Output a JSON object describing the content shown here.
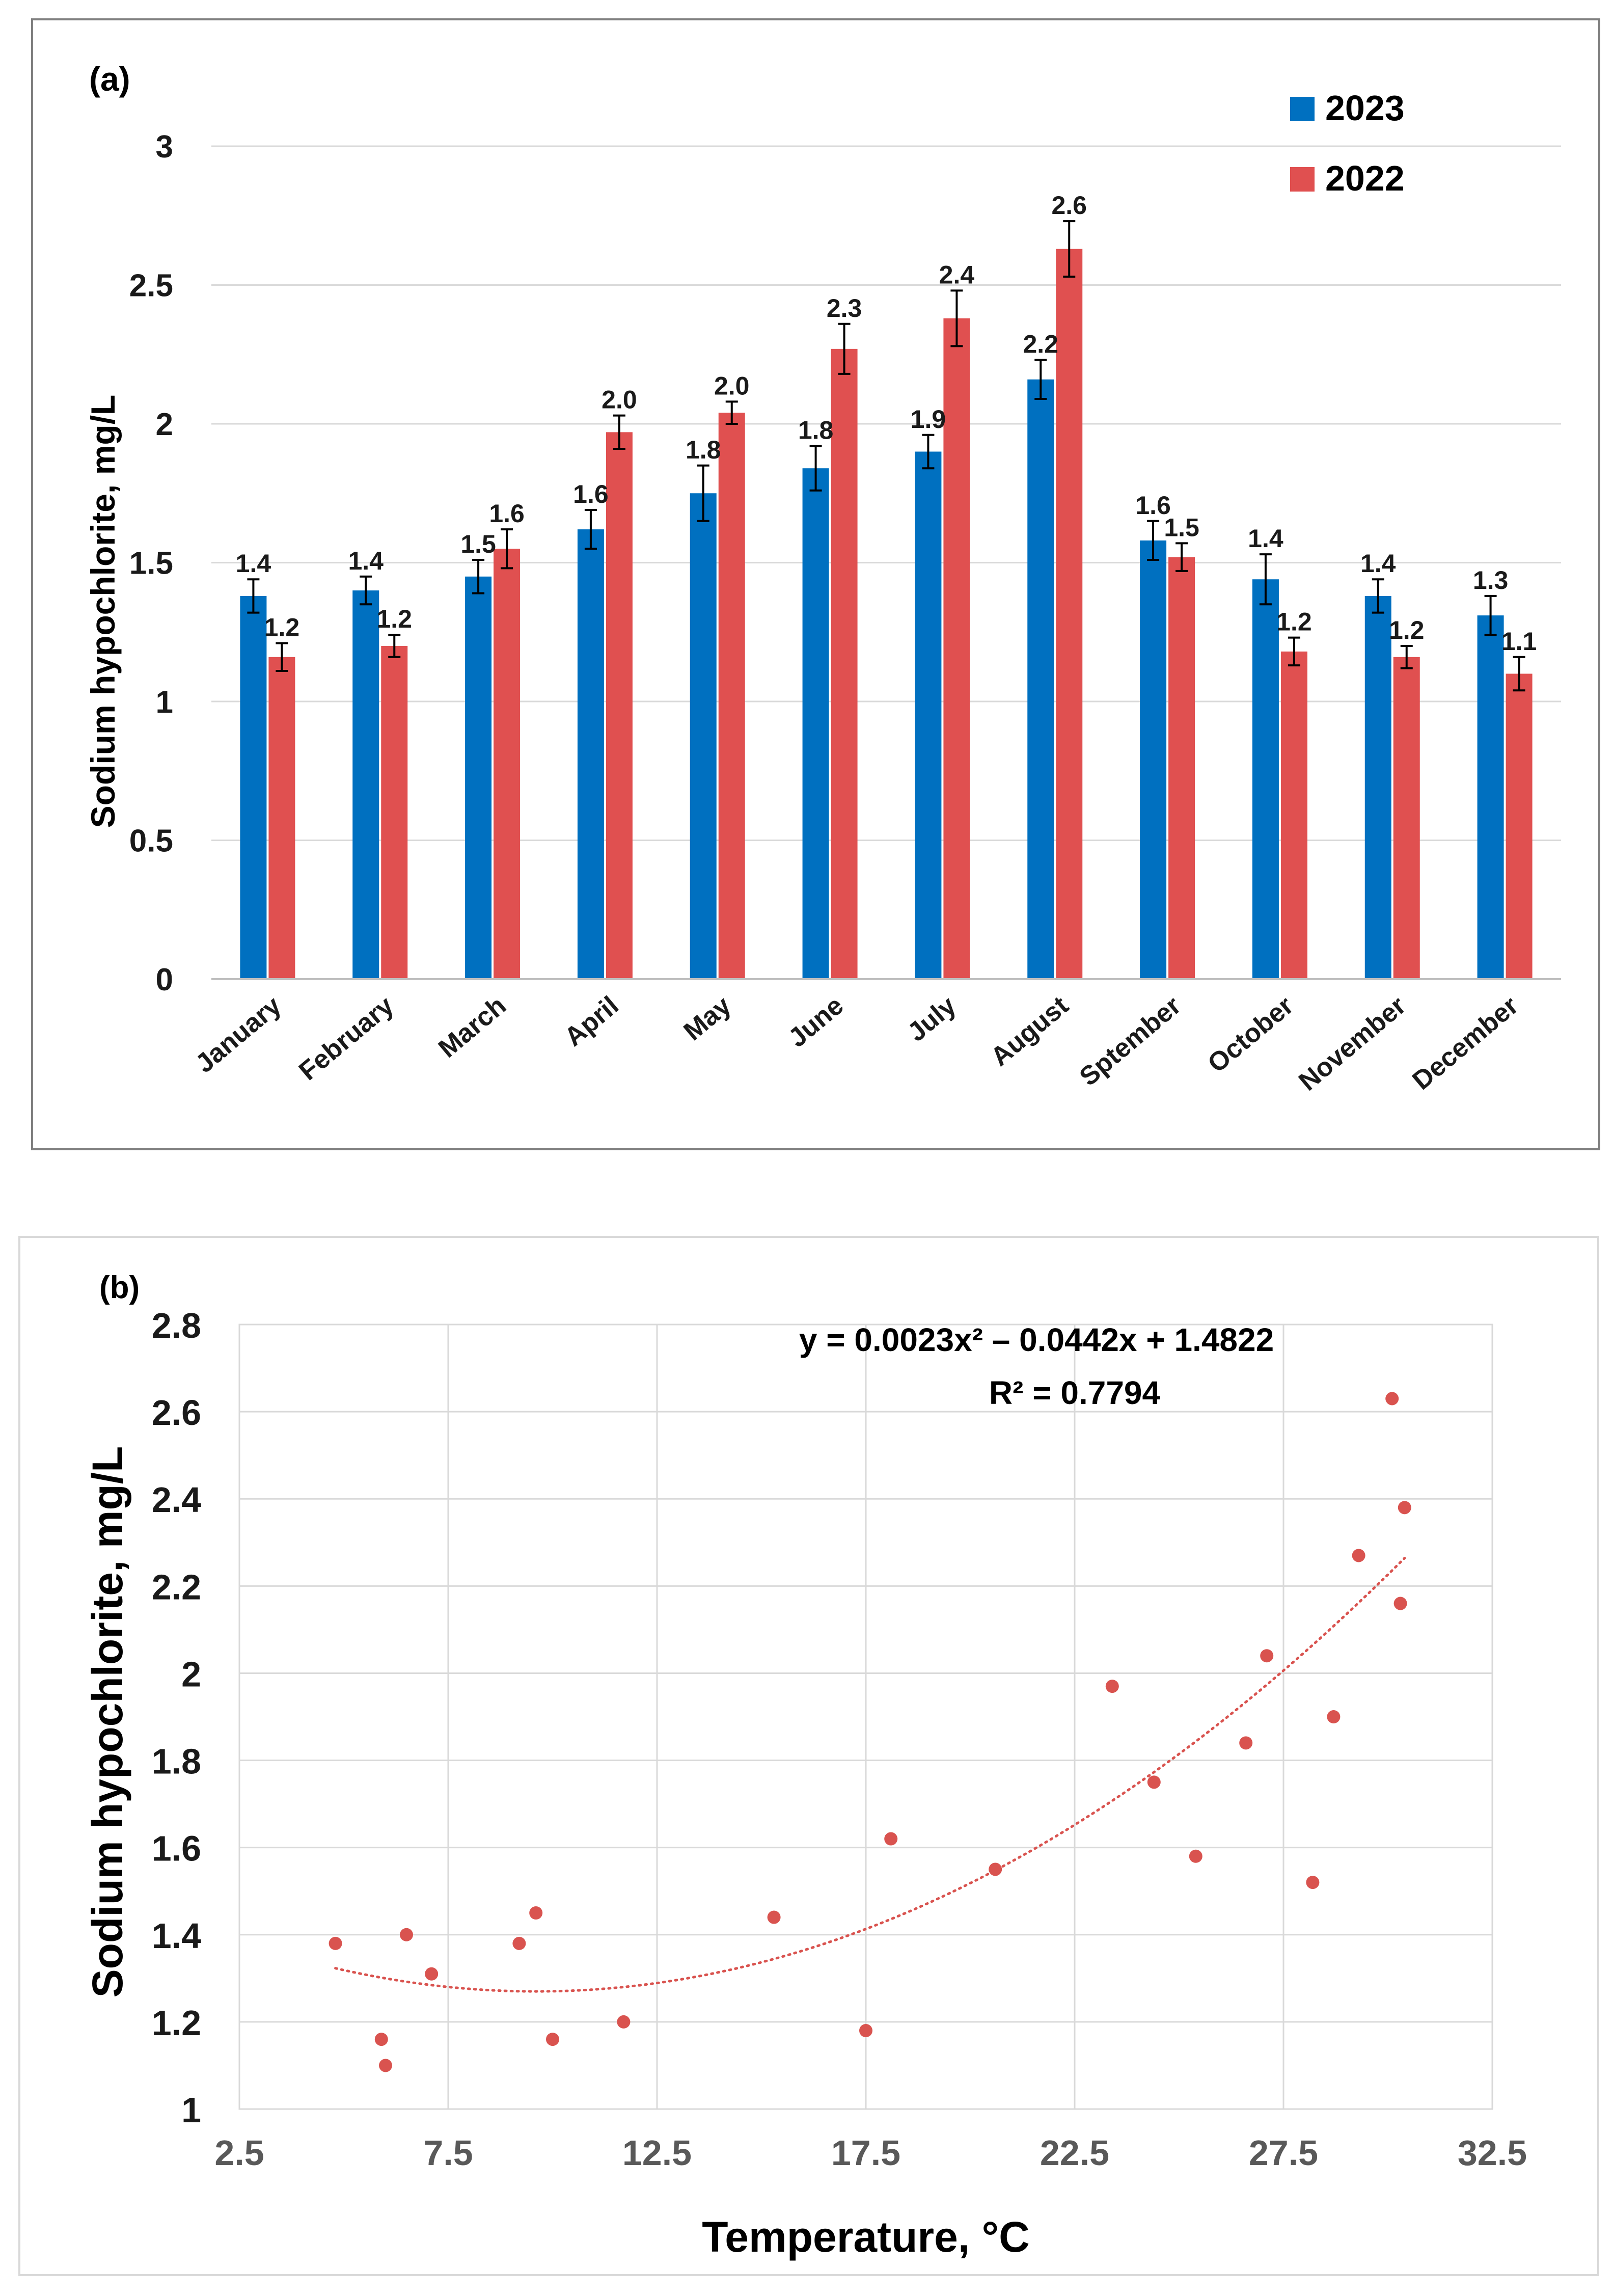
{
  "chart_data": [
    {
      "type": "bar",
      "panel_label": "(a)",
      "ylabel": "Sodium hypochlorite, mg/L",
      "ylim": [
        0,
        3
      ],
      "yticks": [
        0,
        0.5,
        1,
        1.5,
        2,
        2.5,
        3
      ],
      "ytick_labels": [
        "0",
        "0.5",
        "1",
        "1.5",
        "2",
        "2.5",
        "3"
      ],
      "grid": true,
      "legend_position": "top-right",
      "categories": [
        "January",
        "February",
        "March",
        "April",
        "May",
        "June",
        "July",
        "August",
        "Sptember",
        "October",
        "November",
        "December"
      ],
      "series": [
        {
          "name": "2023",
          "color": "#0070C0",
          "values": [
            1.38,
            1.4,
            1.45,
            1.62,
            1.75,
            1.84,
            1.9,
            2.16,
            1.58,
            1.44,
            1.38,
            1.31
          ],
          "errors": [
            0.06,
            0.05,
            0.06,
            0.07,
            0.1,
            0.08,
            0.06,
            0.07,
            0.07,
            0.09,
            0.06,
            0.07
          ],
          "labels": [
            "1.4",
            "1.4",
            "1.5",
            "1.6",
            "1.8",
            "1.8",
            "1.9",
            "2.2",
            "1.6",
            "1.4",
            "1.4",
            "1.3"
          ]
        },
        {
          "name": "2022",
          "color": "#E05050",
          "values": [
            1.16,
            1.2,
            1.55,
            1.97,
            2.04,
            2.27,
            2.38,
            2.63,
            1.52,
            1.18,
            1.16,
            1.1
          ],
          "errors": [
            0.05,
            0.04,
            0.07,
            0.06,
            0.04,
            0.09,
            0.1,
            0.1,
            0.05,
            0.05,
            0.04,
            0.06
          ],
          "labels": [
            "1.2",
            "1.2",
            "1.6",
            "2.0",
            "2.0",
            "2.3",
            "2.4",
            "2.6",
            "1.5",
            "1.2",
            "1.2",
            "1.1"
          ]
        }
      ]
    },
    {
      "type": "scatter",
      "panel_label": "(b)",
      "xlabel": "Temperature, °C",
      "ylabel": "Sodium hypochlorite, mg/L",
      "xlim": [
        2.5,
        32.5
      ],
      "ylim": [
        1,
        2.8
      ],
      "xticks": [
        2.5,
        7.5,
        12.5,
        17.5,
        22.5,
        27.5,
        32.5
      ],
      "xtick_labels": [
        "2.5",
        "7.5",
        "12.5",
        "17.5",
        "22.5",
        "27.5",
        "32.5"
      ],
      "yticks": [
        1,
        1.2,
        1.4,
        1.6,
        1.8,
        2,
        2.2,
        2.4,
        2.6,
        2.8
      ],
      "ytick_labels": [
        "1",
        "1.2",
        "1.4",
        "1.6",
        "1.8",
        "2",
        "2.2",
        "2.4",
        "2.6",
        "2.8"
      ],
      "grid": true,
      "color": "#D9534F",
      "points": [
        [
          4.8,
          1.38
        ],
        [
          5.9,
          1.16
        ],
        [
          6.0,
          1.1
        ],
        [
          6.5,
          1.4
        ],
        [
          7.1,
          1.31
        ],
        [
          9.2,
          1.38
        ],
        [
          9.6,
          1.45
        ],
        [
          10.0,
          1.16
        ],
        [
          11.7,
          1.2
        ],
        [
          15.3,
          1.44
        ],
        [
          17.5,
          1.18
        ],
        [
          18.1,
          1.62
        ],
        [
          20.6,
          1.55
        ],
        [
          23.4,
          1.97
        ],
        [
          24.4,
          1.75
        ],
        [
          25.4,
          1.58
        ],
        [
          26.6,
          1.84
        ],
        [
          27.1,
          2.04
        ],
        [
          28.2,
          1.52
        ],
        [
          28.7,
          1.9
        ],
        [
          29.3,
          2.27
        ],
        [
          30.1,
          2.63
        ],
        [
          30.3,
          2.16
        ],
        [
          30.4,
          2.38
        ]
      ],
      "trendline": {
        "type": "polynomial",
        "coefficients": [
          0.0023,
          -0.0442,
          1.4822
        ],
        "x_range": [
          4.8,
          30.4
        ],
        "equation": "y = 0.0023x² –  0.0442x + 1.4822",
        "r_squared": "R² = 0.7794"
      }
    }
  ]
}
